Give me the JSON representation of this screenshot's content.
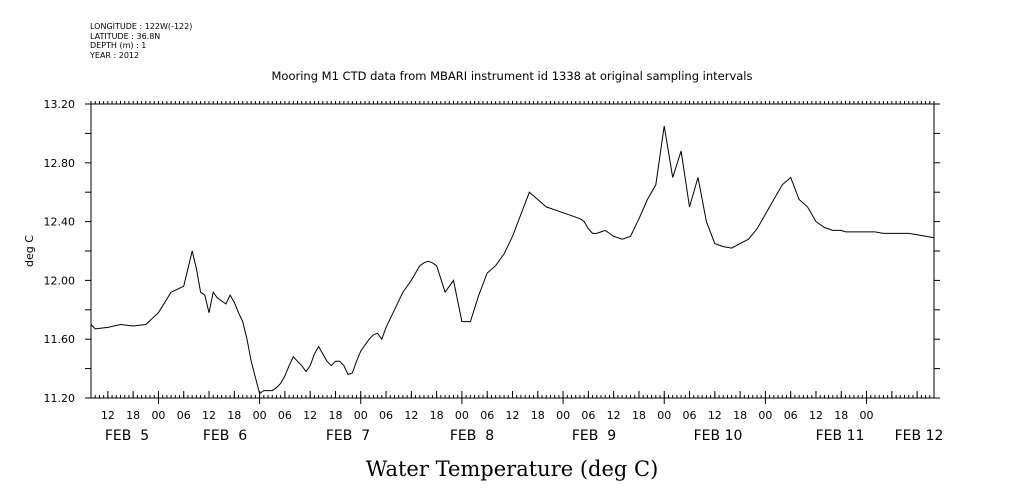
{
  "header": {
    "lines": [
      "LONGITUDE : 122W(-122)",
      "LATITUDE : 36.8N",
      "DEPTH (m) : 1",
      "YEAR : 2012"
    ]
  },
  "chart_data": {
    "type": "line",
    "title": "Mooring M1 CTD data from MBARI instrument id 1338 at original sampling intervals",
    "xlabel": "Water Temperature (deg C)",
    "ylabel": "deg C",
    "ylim": [
      11.2,
      13.2
    ],
    "yticks": [
      "11.20",
      "11.60",
      "12.00",
      "12.40",
      "12.80",
      "13.20"
    ],
    "xlim_hours_from_feb5_00": [
      -16,
      184
    ],
    "hour_tick_labels": [
      "12",
      "18",
      "00",
      "06",
      "12",
      "18",
      "00",
      "06",
      "12",
      "18",
      "00",
      "06",
      "12",
      "18",
      "00",
      "06",
      "12",
      "18",
      "00",
      "06",
      "12",
      "18",
      "00",
      "06",
      "12",
      "18",
      "00",
      "06",
      "12",
      "18",
      "00"
    ],
    "date_labels": [
      "FEB  5",
      "FEB  6",
      "FEB  7",
      "FEB  8",
      "FEB  9",
      "FEB 10",
      "FEB 11",
      "FEB 12"
    ],
    "grid": false,
    "series": [
      {
        "color": "#000000",
        "x": [
          -16,
          -15,
          -12,
          -9,
          -6,
          -3,
          0,
          3,
          6,
          8,
          9,
          10,
          11,
          12,
          13,
          14,
          15,
          16,
          17,
          18,
          19,
          20,
          21,
          22,
          24,
          25,
          26,
          27,
          28,
          29,
          30,
          31,
          32,
          33,
          34,
          35,
          36,
          37,
          38,
          39,
          40,
          41,
          42,
          43,
          44,
          45,
          46,
          47,
          48,
          49,
          50,
          51,
          52,
          53,
          54,
          56,
          58,
          60,
          62,
          63,
          64,
          65,
          66,
          68,
          70,
          72,
          74,
          76,
          78,
          80,
          82,
          84,
          86,
          88,
          90,
          92,
          94,
          96,
          98,
          99,
          100,
          101,
          102,
          103,
          104,
          105,
          106,
          107,
          108,
          110,
          112,
          114,
          116,
          118,
          120,
          122,
          124,
          126,
          128,
          130,
          132,
          134,
          136,
          138,
          140,
          142,
          144,
          146,
          148,
          150,
          152,
          154,
          155,
          156,
          157,
          158,
          159,
          160,
          161,
          162,
          163,
          164,
          165,
          166,
          168,
          170,
          172,
          174,
          176,
          178,
          180,
          182,
          184
        ],
        "y": [
          11.7,
          11.67,
          11.68,
          11.7,
          11.69,
          11.7,
          11.78,
          11.92,
          11.96,
          12.2,
          12.08,
          11.92,
          11.9,
          11.78,
          11.92,
          11.88,
          11.86,
          11.84,
          11.9,
          11.85,
          11.78,
          11.72,
          11.6,
          11.45,
          11.23,
          11.25,
          11.25,
          11.25,
          11.27,
          11.3,
          11.35,
          11.42,
          11.48,
          11.45,
          11.42,
          11.38,
          11.42,
          11.5,
          11.55,
          11.5,
          11.45,
          11.42,
          11.45,
          11.45,
          11.42,
          11.36,
          11.37,
          11.45,
          11.52,
          11.56,
          11.6,
          11.63,
          11.64,
          11.6,
          11.68,
          11.8,
          11.92,
          12.0,
          12.1,
          12.12,
          12.13,
          12.12,
          12.1,
          11.92,
          12.0,
          11.72,
          11.72,
          11.9,
          12.05,
          12.1,
          12.18,
          12.3,
          12.45,
          12.6,
          12.55,
          12.5,
          12.48,
          12.46,
          12.44,
          12.43,
          12.42,
          12.4,
          12.35,
          12.32,
          12.32,
          12.33,
          12.34,
          12.32,
          12.3,
          12.28,
          12.3,
          12.42,
          12.55,
          12.65,
          13.05,
          12.7,
          12.88,
          12.5,
          12.7,
          12.4,
          12.25,
          12.23,
          12.22,
          12.25,
          12.28,
          12.35,
          12.45,
          12.55,
          12.65,
          12.7,
          12.55,
          12.5,
          12.45,
          12.4,
          12.38,
          12.36,
          12.35,
          12.34,
          12.34,
          12.34,
          12.33,
          12.33,
          12.33,
          12.33,
          12.33,
          12.33,
          12.32,
          12.32,
          12.32,
          12.32,
          12.31,
          12.3,
          12.29
        ]
      }
    ]
  }
}
